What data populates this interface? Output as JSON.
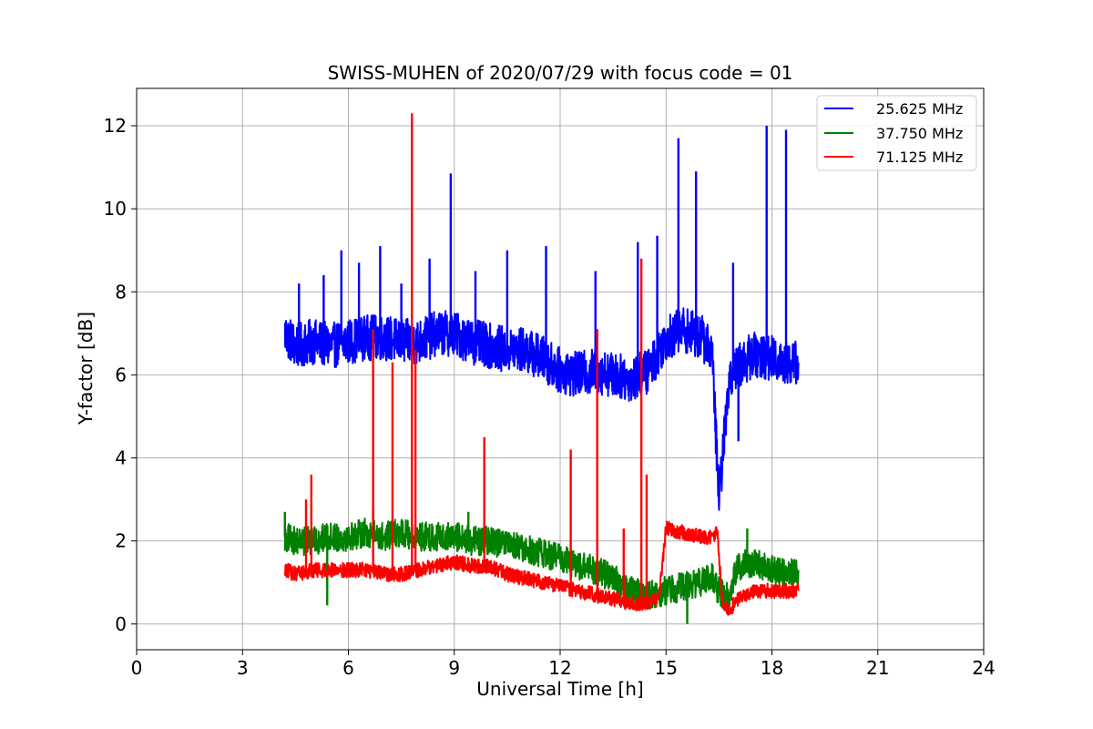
{
  "chart_data": {
    "type": "line",
    "title": "SWISS-MUHEN of 2020/07/29 with focus code = 01",
    "xlabel": "Universal Time [h]",
    "ylabel": "Y-factor [dB]",
    "xlim": [
      0,
      24
    ],
    "ylim": [
      -0.62,
      12.9
    ],
    "xticks": [
      0,
      3,
      6,
      9,
      12,
      15,
      18,
      21,
      24
    ],
    "yticks": [
      0,
      2,
      4,
      6,
      8,
      10,
      12
    ],
    "grid": true,
    "legend_position": "top-right",
    "series": [
      {
        "name": "25.625 MHz",
        "color": "#0000ff",
        "x": [
          4.2,
          4.5,
          5.0,
          5.5,
          6.0,
          6.5,
          7.0,
          7.5,
          8.0,
          8.5,
          9.0,
          9.5,
          10.0,
          10.5,
          11.0,
          11.5,
          12.0,
          12.5,
          13.0,
          13.5,
          14.0,
          14.5,
          15.0,
          15.5,
          16.0,
          16.3,
          16.5,
          16.8,
          17.0,
          17.5,
          18.0,
          18.5,
          18.75
        ],
        "y": [
          7.0,
          6.7,
          6.8,
          6.7,
          6.8,
          6.9,
          6.9,
          6.8,
          6.8,
          7.0,
          7.0,
          6.8,
          6.7,
          6.6,
          6.6,
          6.4,
          6.1,
          6.0,
          6.1,
          6.0,
          5.9,
          6.1,
          6.9,
          7.1,
          6.9,
          6.6,
          3.0,
          6.0,
          6.2,
          6.5,
          6.4,
          6.3,
          6.3
        ],
        "spikes": [
          {
            "x": 4.6,
            "y": 8.2
          },
          {
            "x": 5.3,
            "y": 8.4
          },
          {
            "x": 5.8,
            "y": 9.0
          },
          {
            "x": 6.3,
            "y": 8.7
          },
          {
            "x": 6.9,
            "y": 9.1
          },
          {
            "x": 7.5,
            "y": 8.2
          },
          {
            "x": 8.3,
            "y": 8.8
          },
          {
            "x": 8.9,
            "y": 10.85
          },
          {
            "x": 9.6,
            "y": 8.5
          },
          {
            "x": 10.5,
            "y": 9.0
          },
          {
            "x": 11.6,
            "y": 9.1
          },
          {
            "x": 13.0,
            "y": 8.5
          },
          {
            "x": 14.2,
            "y": 9.2
          },
          {
            "x": 14.75,
            "y": 9.35
          },
          {
            "x": 15.35,
            "y": 11.7
          },
          {
            "x": 15.85,
            "y": 10.9
          },
          {
            "x": 16.9,
            "y": 8.7
          },
          {
            "x": 17.05,
            "y": 4.4
          },
          {
            "x": 17.85,
            "y": 12.0
          },
          {
            "x": 18.4,
            "y": 11.9
          }
        ]
      },
      {
        "name": "37.750 MHz",
        "color": "#008000",
        "x": [
          4.2,
          4.5,
          5.0,
          5.5,
          6.0,
          6.5,
          7.0,
          7.5,
          8.0,
          8.5,
          9.0,
          9.5,
          10.0,
          10.5,
          11.0,
          11.5,
          12.0,
          12.5,
          13.0,
          13.5,
          14.0,
          14.5,
          15.0,
          15.5,
          16.0,
          16.3,
          16.5,
          16.8,
          17.0,
          17.5,
          18.0,
          18.5,
          18.75
        ],
        "y": [
          2.1,
          2.0,
          2.0,
          2.1,
          2.1,
          2.2,
          2.1,
          2.2,
          2.1,
          2.1,
          2.1,
          2.0,
          2.0,
          1.9,
          1.8,
          1.7,
          1.6,
          1.4,
          1.3,
          1.1,
          0.8,
          0.7,
          0.8,
          0.9,
          1.0,
          1.1,
          0.8,
          0.6,
          1.4,
          1.5,
          1.3,
          1.2,
          1.3
        ],
        "spikes": [
          {
            "x": 4.2,
            "y": 2.7
          },
          {
            "x": 5.4,
            "y": 0.45
          },
          {
            "x": 6.7,
            "y": 2.8
          },
          {
            "x": 9.4,
            "y": 2.7
          },
          {
            "x": 15.6,
            "y": 0.0
          },
          {
            "x": 17.3,
            "y": 2.3
          }
        ]
      },
      {
        "name": "71.125 MHz",
        "color": "#ff0000",
        "x": [
          4.2,
          4.5,
          5.0,
          5.5,
          6.0,
          6.5,
          7.0,
          7.5,
          8.0,
          8.5,
          9.0,
          9.5,
          10.0,
          10.5,
          11.0,
          11.5,
          12.0,
          12.5,
          13.0,
          13.5,
          14.0,
          14.5,
          14.8,
          15.0,
          15.5,
          16.0,
          16.3,
          16.45,
          16.6,
          16.8,
          17.0,
          17.5,
          18.0,
          18.5,
          18.75
        ],
        "y": [
          1.3,
          1.2,
          1.3,
          1.3,
          1.3,
          1.3,
          1.2,
          1.2,
          1.3,
          1.4,
          1.5,
          1.4,
          1.4,
          1.2,
          1.1,
          1.0,
          0.9,
          0.8,
          0.7,
          0.6,
          0.5,
          0.5,
          0.6,
          2.3,
          2.2,
          2.1,
          2.1,
          2.2,
          0.5,
          0.3,
          0.6,
          0.8,
          0.8,
          0.8,
          0.8
        ],
        "spikes": [
          {
            "x": 4.8,
            "y": 3.0
          },
          {
            "x": 4.95,
            "y": 3.6
          },
          {
            "x": 6.7,
            "y": 7.1
          },
          {
            "x": 7.25,
            "y": 6.3
          },
          {
            "x": 7.8,
            "y": 12.3
          },
          {
            "x": 7.9,
            "y": 6.6
          },
          {
            "x": 9.85,
            "y": 4.5
          },
          {
            "x": 12.3,
            "y": 4.2
          },
          {
            "x": 13.05,
            "y": 7.1
          },
          {
            "x": 13.8,
            "y": 2.3
          },
          {
            "x": 14.3,
            "y": 8.8
          },
          {
            "x": 14.45,
            "y": 3.6
          }
        ]
      }
    ]
  }
}
